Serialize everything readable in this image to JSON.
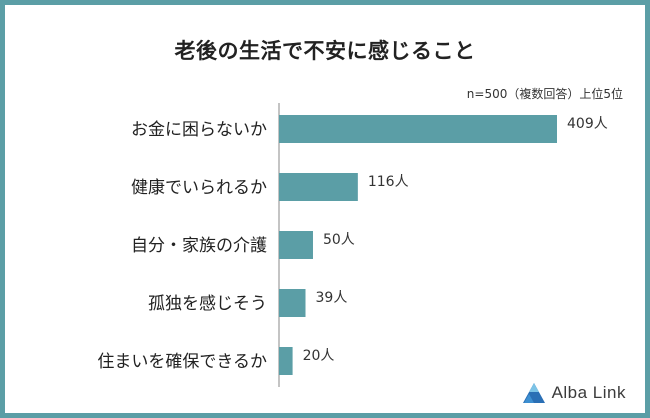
{
  "colors": {
    "frame": "#5b9ea6",
    "bar": "#5b9ea6",
    "text": "#222222"
  },
  "chart_data": {
    "type": "bar",
    "orientation": "horizontal",
    "title": "老後の生活で不安に感じること",
    "note": "n=500（複数回答）上位5位",
    "categories": [
      "お金に困らないか",
      "健康でいられるか",
      "自分・家族の介護",
      "孤独を感じそう",
      "住まいを確保できるか"
    ],
    "values": [
      409,
      116,
      50,
      39,
      20
    ],
    "value_labels": [
      "409人",
      "116人",
      "50人",
      "39人",
      "20人"
    ],
    "unit": "人"
  },
  "brand": {
    "name": "Alba Link",
    "icon": "alba-link-logo-icon"
  }
}
